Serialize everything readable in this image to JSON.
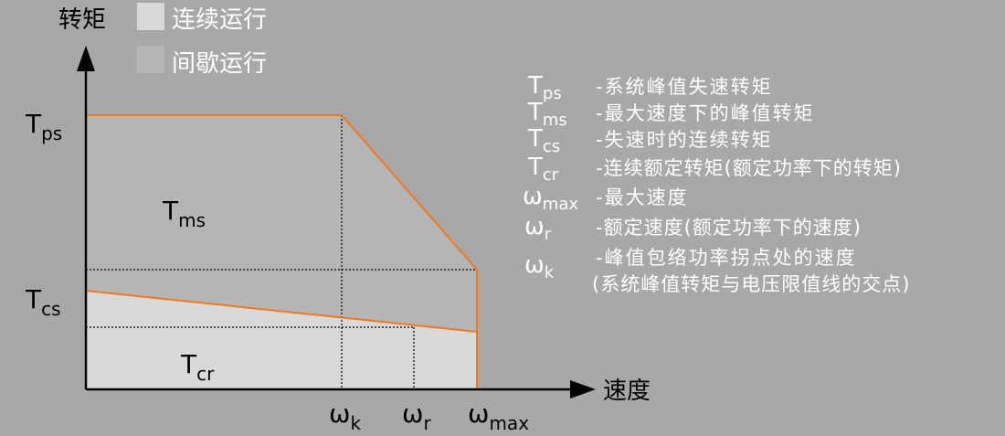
{
  "axes": {
    "y_label": "转矩",
    "x_label": "速度"
  },
  "legend": {
    "continuous": {
      "label": "连续运行",
      "color": "#d9d9d9"
    },
    "intermittent": {
      "label": "间歇运行",
      "color": "#b5b5b5"
    }
  },
  "y_ticks": {
    "ps": {
      "main": "T",
      "sub": "ps"
    },
    "cs": {
      "main": "T",
      "sub": "cs"
    }
  },
  "x_ticks": {
    "k": {
      "main": "ω",
      "sub": "k"
    },
    "r": {
      "main": "ω",
      "sub": "r"
    },
    "max": {
      "main": "ω",
      "sub": "max"
    }
  },
  "region_labels": {
    "ms": {
      "main": "T",
      "sub": "ms"
    },
    "cr": {
      "main": "T",
      "sub": "cr"
    }
  },
  "definitions": [
    {
      "main": "T",
      "sub": "ps",
      "text": "-系统峰值失速转矩"
    },
    {
      "main": "T",
      "sub": "ms",
      "text": "-最大速度下的峰值转矩"
    },
    {
      "main": "T",
      "sub": "cs",
      "text": "-失速时的连续转矩"
    },
    {
      "main": "T",
      "sub": "cr",
      "text": "-连续额定转矩(额定功率下的转矩)"
    },
    {
      "main": "ω",
      "sub": "max",
      "text": "-最大速度"
    },
    {
      "main": "ω",
      "sub": "r",
      "text": "-额定速度(额定功率下的速度)"
    },
    {
      "main": "ω",
      "sub": "k",
      "text": "-峰值包络功率拐点处的速度"
    }
  ],
  "definition_note": "(系统峰值转矩与电压限值线的交点)",
  "colors": {
    "background": "#a8a8a8",
    "curve": "#f07820",
    "axis": "#000000",
    "text": "#ffffff",
    "dark_text": "#000000"
  }
}
